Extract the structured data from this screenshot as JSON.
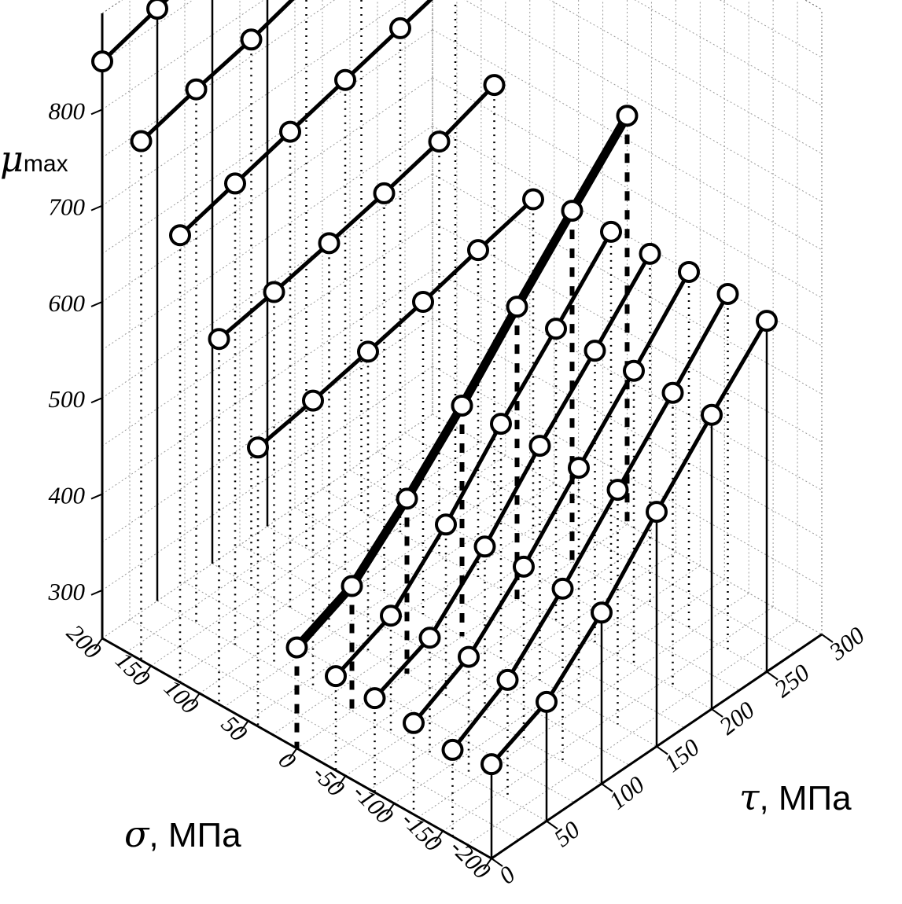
{
  "chart_data": {
    "type": "scatter3d",
    "axes": {
      "z": {
        "label_symbol": "μ",
        "label_subscript": "max",
        "ticks": [
          "300",
          "400",
          "500",
          "600",
          "700",
          "800"
        ],
        "range": [
          250,
          900
        ]
      },
      "sigma": {
        "label_symbol": "σ",
        "label_text": ", МПа",
        "ticks": [
          "200",
          "150",
          "100",
          "50",
          "0",
          "-50",
          "-100",
          "-150",
          "-200"
        ],
        "range": [
          200,
          -200
        ]
      },
      "tau": {
        "label_symbol": "τ",
        "label_text": ", МПа",
        "ticks": [
          "0",
          "50",
          "100",
          "150",
          "200",
          "250",
          "300"
        ],
        "range": [
          0,
          300
        ]
      }
    },
    "grid": true,
    "series": [
      {
        "sigma": 200,
        "style": "solid",
        "points": [
          [
            0,
            850
          ],
          [
            50,
            866
          ],
          [
            100,
            883
          ],
          [
            150,
            900
          ]
        ]
      },
      {
        "sigma": 150,
        "style": "dotted",
        "points": [
          [
            0,
            790
          ],
          [
            50,
            805
          ],
          [
            100,
            818
          ],
          [
            150,
            835
          ],
          [
            200,
            855
          ]
        ]
      },
      {
        "sigma": 100,
        "style": "dotted",
        "points": [
          [
            0,
            715
          ],
          [
            50,
            730
          ],
          [
            100,
            745
          ],
          [
            150,
            760
          ],
          [
            200,
            775
          ],
          [
            250,
            790
          ]
        ]
      },
      {
        "sigma": 50,
        "style": "dotted",
        "points": [
          [
            0,
            630
          ],
          [
            50,
            640
          ],
          [
            100,
            652
          ],
          [
            150,
            665
          ],
          [
            200,
            680
          ],
          [
            250,
            700
          ]
        ]
      },
      {
        "sigma": 0,
        "style": "dotted",
        "points": [
          [
            0,
            540
          ],
          [
            50,
            550
          ],
          [
            100,
            562
          ],
          [
            150,
            575
          ],
          [
            200,
            590
          ],
          [
            250,
            604
          ]
        ]
      },
      {
        "sigma": -50,
        "style": "dashed",
        "bold": true,
        "points": [
          [
            0,
            355
          ],
          [
            50,
            380
          ],
          [
            100,
            432
          ],
          [
            150,
            490
          ],
          [
            200,
            554
          ],
          [
            250,
            615
          ],
          [
            300,
            675
          ]
        ]
      },
      {
        "sigma": -100,
        "style": "dotted",
        "points": [
          [
            0,
            348
          ],
          [
            50,
            372
          ],
          [
            100,
            428
          ],
          [
            150,
            494
          ],
          [
            200,
            554
          ],
          [
            250,
            616
          ]
        ]
      },
      {
        "sigma": -150,
        "style": "dotted",
        "points": [
          [
            0,
            348
          ],
          [
            50,
            372
          ],
          [
            100,
            428
          ],
          [
            150,
            494
          ],
          [
            200,
            554
          ],
          [
            250,
            616
          ]
        ]
      },
      {
        "sigma": -200,
        "style": "dotted",
        "points": [
          [
            0,
            345
          ],
          [
            50,
            375
          ],
          [
            100,
            430
          ],
          [
            150,
            494
          ],
          [
            200,
            556
          ],
          [
            250,
            620
          ]
        ]
      },
      {
        "sigma": -250,
        "style": "dotted",
        "points": [
          [
            0,
            340
          ],
          [
            50,
            374
          ],
          [
            100,
            430
          ],
          [
            150,
            494
          ],
          [
            200,
            556
          ],
          [
            250,
            620
          ]
        ]
      },
      {
        "sigma": -300,
        "style": "solid",
        "points": [
          [
            0,
            348
          ],
          [
            50,
            374
          ],
          [
            100,
            428
          ],
          [
            150,
            494
          ],
          [
            200,
            556
          ],
          [
            250,
            615
          ]
        ]
      }
    ]
  }
}
